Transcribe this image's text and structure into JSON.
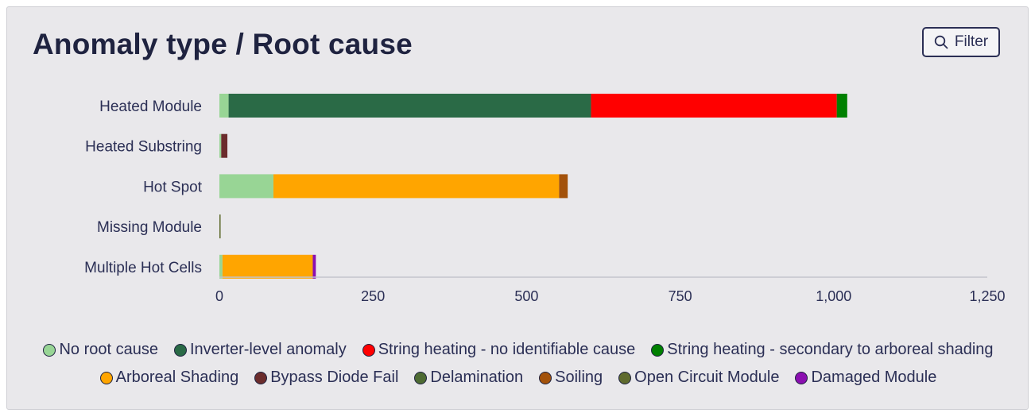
{
  "header": {
    "title": "Anomaly type / Root cause",
    "filter_label": "Filter"
  },
  "chart_data": {
    "type": "bar",
    "orientation": "horizontal",
    "stacked": true,
    "categories": [
      "Heated Module",
      "Heated Substring",
      "Hot Spot",
      "Missing Module",
      "Multiple Hot Cells"
    ],
    "series": [
      {
        "name": "No root cause",
        "color": "#98d595",
        "values": [
          15,
          3,
          88,
          0,
          5
        ]
      },
      {
        "name": "Inverter-level anomaly",
        "color": "#2a6a46",
        "values": [
          590,
          0,
          0,
          0,
          0
        ]
      },
      {
        "name": "String heating - no identifiable cause",
        "color": "#ff0000",
        "values": [
          400,
          0,
          0,
          0,
          0
        ]
      },
      {
        "name": "String heating - secondary to arboreal shading",
        "color": "#008000",
        "values": [
          17,
          0,
          0,
          0,
          0
        ]
      },
      {
        "name": "Arboreal Shading",
        "color": "#ffa500",
        "values": [
          0,
          0,
          465,
          0,
          147
        ]
      },
      {
        "name": "Bypass Diode Fail",
        "color": "#6b2c2c",
        "values": [
          0,
          10,
          0,
          0,
          0
        ]
      },
      {
        "name": "Delamination",
        "color": "#4e6b33",
        "values": [
          0,
          0,
          0,
          0,
          0
        ]
      },
      {
        "name": "Soiling",
        "color": "#a3520b",
        "values": [
          0,
          0,
          14,
          0,
          0
        ]
      },
      {
        "name": "Open Circuit Module",
        "color": "#5f6b2e",
        "values": [
          0,
          0,
          0,
          2,
          0
        ]
      },
      {
        "name": "Damaged Module",
        "color": "#8b0fb0",
        "values": [
          0,
          0,
          0,
          0,
          5
        ]
      }
    ],
    "xlim": [
      0,
      1250
    ],
    "xticks": [
      "0",
      "250",
      "500",
      "750",
      "1,000",
      "1,250"
    ],
    "xtick_values": [
      0,
      250,
      500,
      750,
      1000,
      1250
    ],
    "xlabel": "",
    "ylabel": "",
    "legend_position": "bottom",
    "grid": false
  }
}
